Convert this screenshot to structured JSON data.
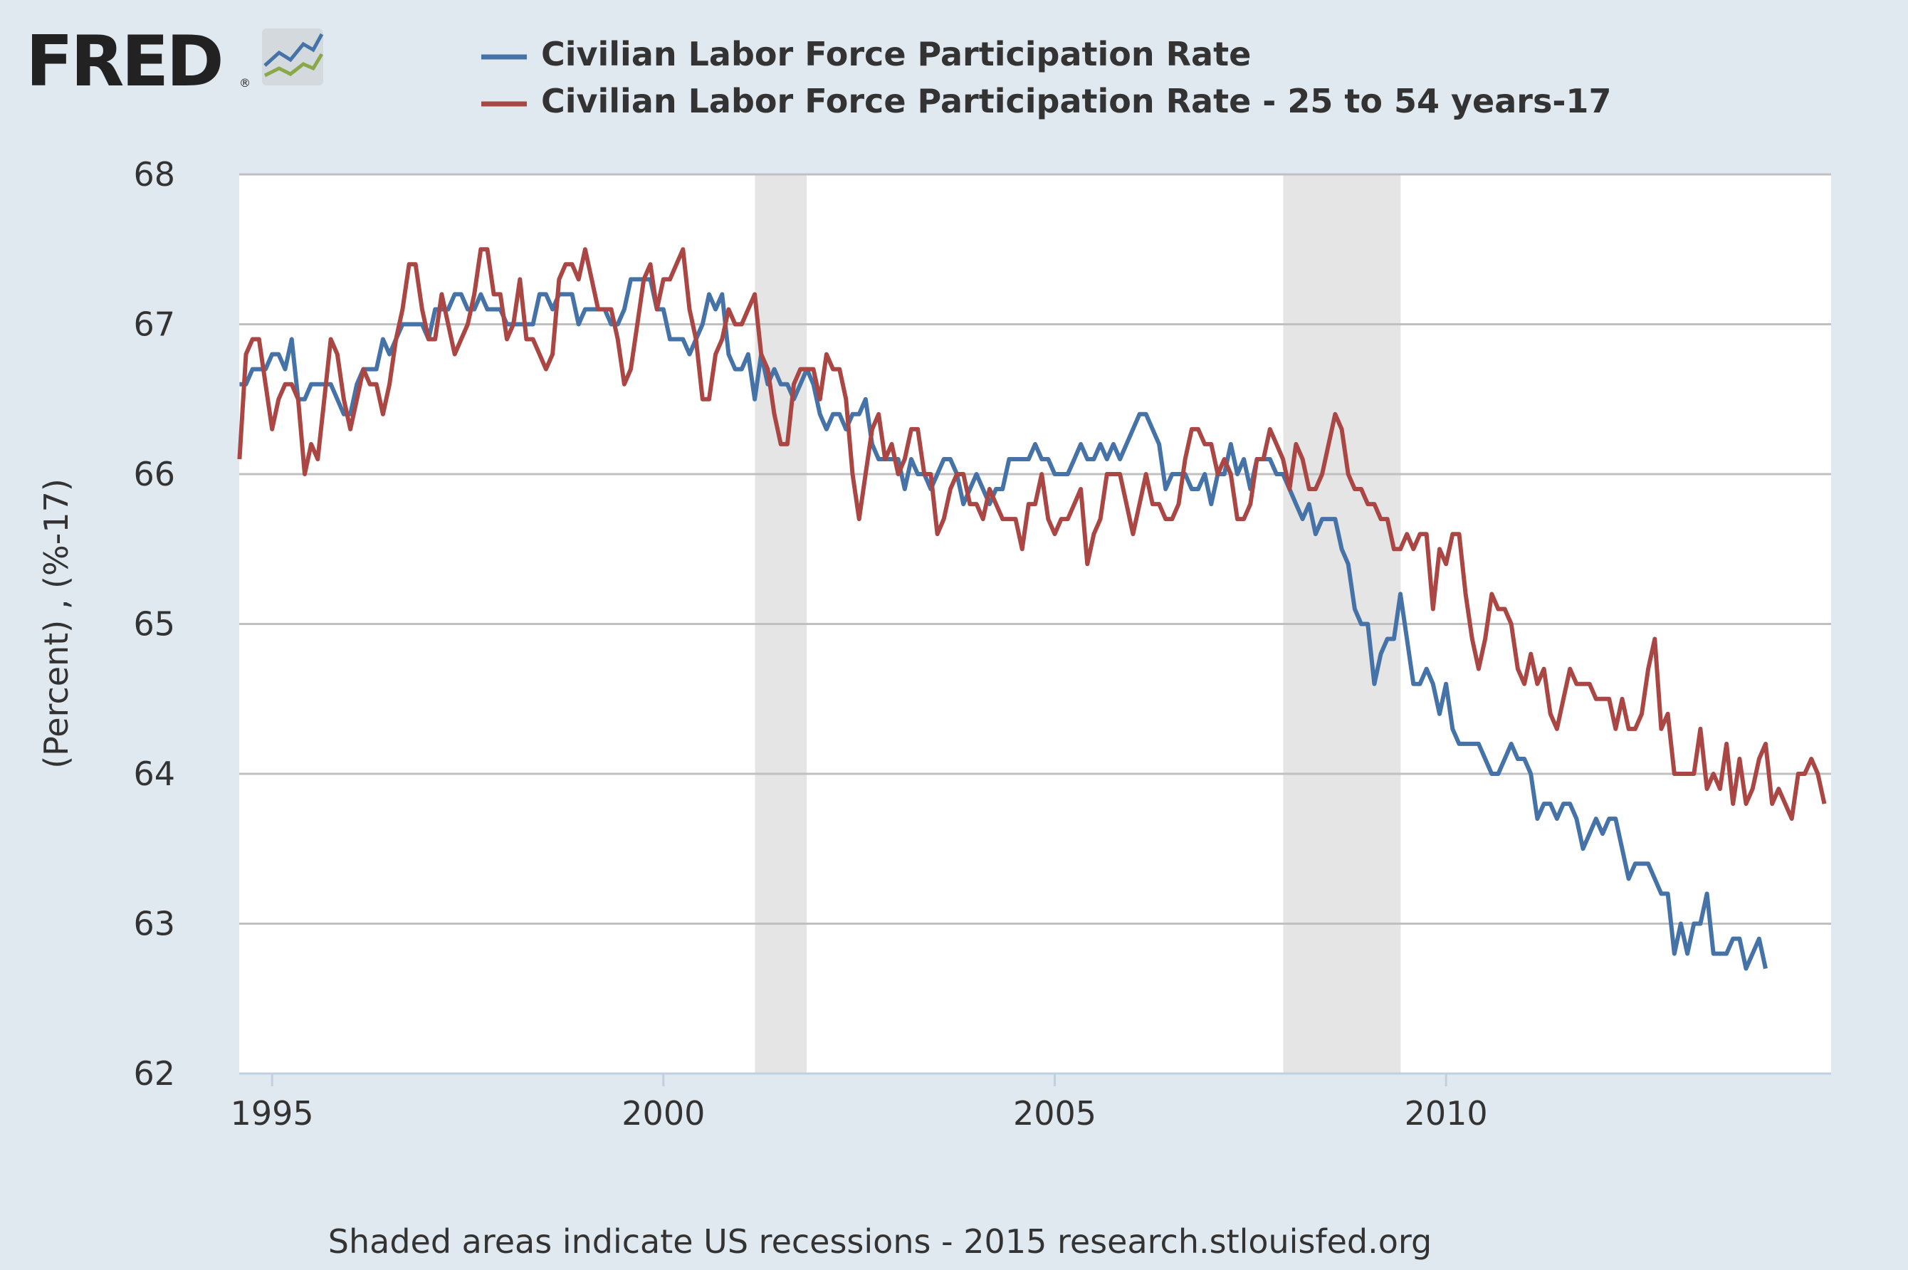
{
  "logo": {
    "text": "FRED",
    "registered": "®"
  },
  "footer": {
    "note": "Shaded areas indicate US recessions - 2015 research.stlouisfed.org"
  },
  "chart_data": {
    "type": "line",
    "title": "",
    "xlabel": "",
    "ylabel": "(Percent) , (%-17)",
    "xlim": [
      1994.58,
      2014.92
    ],
    "ylim": [
      62,
      68
    ],
    "x_ticks": [
      1995,
      2000,
      2005,
      2010
    ],
    "y_ticks": [
      62,
      63,
      64,
      65,
      66,
      67,
      68
    ],
    "grid": "horizontal",
    "legend_position": "top",
    "recessions": [
      [
        2001.17,
        2001.83
      ],
      [
        2007.92,
        2009.42
      ]
    ],
    "x_start": "1994-08",
    "x_step": "monthly",
    "series": [
      {
        "name": "Civilian Labor Force Participation Rate",
        "color": "#4572a7",
        "values": [
          66.6,
          66.6,
          66.7,
          66.7,
          66.7,
          66.8,
          66.8,
          66.7,
          66.9,
          66.5,
          66.5,
          66.6,
          66.6,
          66.6,
          66.6,
          66.5,
          66.4,
          66.4,
          66.6,
          66.7,
          66.7,
          66.7,
          66.9,
          66.8,
          66.9,
          67.0,
          67.0,
          67.0,
          67.0,
          66.9,
          67.1,
          67.1,
          67.1,
          67.2,
          67.2,
          67.1,
          67.1,
          67.2,
          67.1,
          67.1,
          67.1,
          67.0,
          67.0,
          67.0,
          67.0,
          67.0,
          67.2,
          67.2,
          67.1,
          67.2,
          67.2,
          67.2,
          67.0,
          67.1,
          67.1,
          67.1,
          67.1,
          67.0,
          67.0,
          67.1,
          67.3,
          67.3,
          67.3,
          67.3,
          67.1,
          67.1,
          66.9,
          66.9,
          66.9,
          66.8,
          66.9,
          67.0,
          67.2,
          67.1,
          67.2,
          66.8,
          66.7,
          66.7,
          66.8,
          66.5,
          66.8,
          66.6,
          66.7,
          66.6,
          66.6,
          66.5,
          66.6,
          66.7,
          66.6,
          66.4,
          66.3,
          66.4,
          66.4,
          66.3,
          66.4,
          66.4,
          66.5,
          66.2,
          66.1,
          66.1,
          66.1,
          66.1,
          65.9,
          66.1,
          66.0,
          66.0,
          65.9,
          66.0,
          66.1,
          66.1,
          66.0,
          65.8,
          65.9,
          66.0,
          65.9,
          65.8,
          65.9,
          65.9,
          66.1,
          66.1,
          66.1,
          66.1,
          66.2,
          66.1,
          66.1,
          66.0,
          66.0,
          66.0,
          66.1,
          66.2,
          66.1,
          66.1,
          66.2,
          66.1,
          66.2,
          66.1,
          66.2,
          66.3,
          66.4,
          66.4,
          66.3,
          66.2,
          65.9,
          66.0,
          66.0,
          66.0,
          65.9,
          65.9,
          66.0,
          65.8,
          66.0,
          66.0,
          66.2,
          66.0,
          66.1,
          65.9,
          66.1,
          66.1,
          66.1,
          66.0,
          66.0,
          65.9,
          65.8,
          65.7,
          65.8,
          65.6,
          65.7,
          65.7,
          65.7,
          65.5,
          65.4,
          65.1,
          65.0,
          65.0,
          64.6,
          64.8,
          64.9,
          64.9,
          65.2,
          64.9,
          64.6,
          64.6,
          64.7,
          64.6,
          64.4,
          64.6,
          64.3,
          64.2,
          64.2,
          64.2,
          64.2,
          64.1,
          64.0,
          64.0,
          64.1,
          64.2,
          64.1,
          64.1,
          64.0,
          63.7,
          63.8,
          63.8,
          63.7,
          63.8,
          63.8,
          63.7,
          63.5,
          63.6,
          63.7,
          63.6,
          63.7,
          63.7,
          63.5,
          63.3,
          63.4,
          63.4,
          63.4,
          63.3,
          63.2,
          63.2,
          62.8,
          63.0,
          62.8,
          63.0,
          63.0,
          63.2,
          62.8,
          62.8,
          62.8,
          62.9,
          62.9,
          62.7,
          62.8,
          62.9,
          62.7
        ]
      },
      {
        "name": "Civilian Labor Force Participation Rate - 25 to 54 years-17",
        "color": "#aa4643",
        "values": [
          66.1,
          66.8,
          66.9,
          66.9,
          66.6,
          66.3,
          66.5,
          66.6,
          66.6,
          66.5,
          66.0,
          66.2,
          66.1,
          66.5,
          66.9,
          66.8,
          66.5,
          66.3,
          66.5,
          66.7,
          66.6,
          66.6,
          66.4,
          66.6,
          66.9,
          67.1,
          67.4,
          67.4,
          67.1,
          66.9,
          66.9,
          67.2,
          67.0,
          66.8,
          66.9,
          67.0,
          67.2,
          67.5,
          67.5,
          67.2,
          67.2,
          66.9,
          67.0,
          67.3,
          66.9,
          66.9,
          66.8,
          66.7,
          66.8,
          67.3,
          67.4,
          67.4,
          67.3,
          67.5,
          67.3,
          67.1,
          67.1,
          67.1,
          66.9,
          66.6,
          66.7,
          67.0,
          67.3,
          67.4,
          67.1,
          67.3,
          67.3,
          67.4,
          67.5,
          67.1,
          66.9,
          66.5,
          66.5,
          66.8,
          66.9,
          67.1,
          67.0,
          67.0,
          67.1,
          67.2,
          66.8,
          66.7,
          66.4,
          66.2,
          66.2,
          66.6,
          66.7,
          66.7,
          66.7,
          66.5,
          66.8,
          66.7,
          66.7,
          66.5,
          66.0,
          65.7,
          66.0,
          66.3,
          66.4,
          66.1,
          66.2,
          66.0,
          66.1,
          66.3,
          66.3,
          66.0,
          66.0,
          65.6,
          65.7,
          65.9,
          66.0,
          66.0,
          65.8,
          65.8,
          65.7,
          65.9,
          65.8,
          65.7,
          65.7,
          65.7,
          65.5,
          65.8,
          65.8,
          66.0,
          65.7,
          65.6,
          65.7,
          65.7,
          65.8,
          65.9,
          65.4,
          65.6,
          65.7,
          66.0,
          66.0,
          66.0,
          65.8,
          65.6,
          65.8,
          66.0,
          65.8,
          65.8,
          65.7,
          65.7,
          65.8,
          66.1,
          66.3,
          66.3,
          66.2,
          66.2,
          66.0,
          66.1,
          66.0,
          65.7,
          65.7,
          65.8,
          66.1,
          66.1,
          66.3,
          66.2,
          66.1,
          65.9,
          66.2,
          66.1,
          65.9,
          65.9,
          66.0,
          66.2,
          66.4,
          66.3,
          66.0,
          65.9,
          65.9,
          65.8,
          65.8,
          65.7,
          65.7,
          65.5,
          65.5,
          65.6,
          65.5,
          65.6,
          65.6,
          65.1,
          65.5,
          65.4,
          65.6,
          65.6,
          65.2,
          64.9,
          64.7,
          64.9,
          65.2,
          65.1,
          65.1,
          65.0,
          64.7,
          64.6,
          64.8,
          64.6,
          64.7,
          64.4,
          64.3,
          64.5,
          64.7,
          64.6,
          64.6,
          64.6,
          64.5,
          64.5,
          64.5,
          64.3,
          64.5,
          64.3,
          64.3,
          64.4,
          64.7,
          64.9,
          64.3,
          64.4,
          64.0,
          64.0,
          64.0,
          64.0,
          64.3,
          63.9,
          64.0,
          63.9,
          64.2,
          63.8,
          64.1,
          63.8,
          63.9,
          64.1,
          64.2,
          63.8,
          63.9,
          63.8,
          63.7,
          64.0,
          64.0,
          64.1,
          64.0,
          63.8
        ]
      }
    ]
  }
}
